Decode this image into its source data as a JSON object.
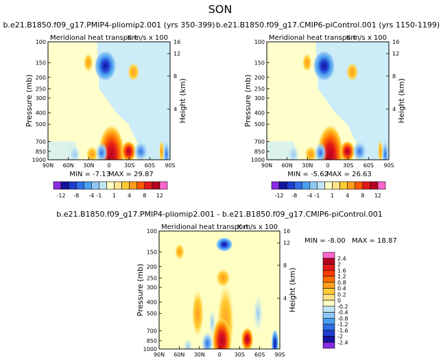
{
  "season": "SON",
  "colors": {
    "bg_light_yellow": "#ffffcc",
    "bg_light_blue": "#ccecf8",
    "palette_panels": [
      "#8a2be2",
      "#1414a0",
      "#1e3ccf",
      "#2f6fe6",
      "#4aa0f0",
      "#8fc7f4",
      "#bfe6f6",
      "#ffffc4",
      "#ffe48a",
      "#ffcc33",
      "#ff9a1a",
      "#ff5a00",
      "#e31a1c",
      "#b40020",
      "#ff66cc"
    ],
    "palette_diff": [
      "#8a2be2",
      "#1414a0",
      "#1e3ccf",
      "#2f6fe6",
      "#4aa0f0",
      "#8fc7f4",
      "#bfe6f6",
      "#ffffc4",
      "#ffe48a",
      "#ffcc33",
      "#ffa020",
      "#ff7000",
      "#ff3a00",
      "#e31a1c",
      "#b40020",
      "#ff66cc"
    ]
  },
  "panels": {
    "left": {
      "title": "b.e21.B1850.f09_g17.PMIP4-pliomip2.001 (yrs 350-399)",
      "subtitle_left": "Meridional heat transport",
      "subtitle_right": "K m/s x 100",
      "min_text": "MIN = -7.13",
      "max_text": "MAX = 29.87",
      "colorbar_labels": [
        "-12",
        "-8",
        "-4",
        "-1",
        "1",
        "4",
        "8",
        "12"
      ]
    },
    "right": {
      "title": "b.e21.B1850.f09_g17.CMIP6-piControl.001 (yrs 1150-1199)",
      "subtitle_left": "Meridional heat transport",
      "subtitle_right": "K m/s x 100",
      "min_text": "MIN = -5.62",
      "max_text": "MAX = 26.63",
      "colorbar_labels": [
        "-12",
        "-8",
        "-4",
        "-1",
        "1",
        "4",
        "8",
        "12"
      ]
    },
    "diff": {
      "title": "b.e21.B1850.f09_g17.PMIP4-pliomip2.001 - b.e21.B1850.f09_g17.CMIP6-piControl.001",
      "subtitle_left": "Meridional heat transport",
      "subtitle_right": "K m/s x 100",
      "min_text": "MIN = -8.00",
      "max_text": "MAX = 18.87",
      "colorbar_labels": [
        "2.4",
        "2",
        "1.6",
        "1.2",
        "0.8",
        "0.4",
        "0.2",
        "0",
        "-0.2",
        "-0.4",
        "-0.8",
        "-1.2",
        "-1.6",
        "-2",
        "-2.4"
      ]
    }
  },
  "axes": {
    "ylabel": "Pressure (mb)",
    "ylabel_right": "Height (km)",
    "pressure_ticks": [
      "100",
      "150",
      "200",
      "250",
      "300",
      "400",
      "500",
      "700",
      "850",
      "1000"
    ],
    "height_ticks": [
      "16",
      "12",
      "8",
      "4"
    ],
    "lat_ticks": [
      "90N",
      "60N",
      "30N",
      "0",
      "30S",
      "60S",
      "90S"
    ]
  },
  "chart_data": [
    {
      "type": "heatmap",
      "title": "b.e21.B1850.f09_g17.PMIP4-pliomip2.001 (yrs 350-399)",
      "ylabel": "Pressure (mb)",
      "x_ticks": [
        "90N",
        "60N",
        "30N",
        "0",
        "30S",
        "60S",
        "90S"
      ],
      "y_ticks": [
        100,
        150,
        200,
        250,
        300,
        400,
        500,
        700,
        850,
        1000
      ],
      "levels": [
        -12,
        -8,
        -4,
        -1,
        1,
        4,
        8,
        12
      ],
      "min": -7.13,
      "max": 29.87
    },
    {
      "type": "heatmap",
      "title": "b.e21.B1850.f09_g17.CMIP6-piControl.001 (yrs 1150-1199)",
      "ylabel": "Pressure (mb)",
      "x_ticks": [
        "90N",
        "60N",
        "30N",
        "0",
        "30S",
        "60S",
        "90S"
      ],
      "y_ticks": [
        100,
        150,
        200,
        250,
        300,
        400,
        500,
        700,
        850,
        1000
      ],
      "levels": [
        -12,
        -8,
        -4,
        -1,
        1,
        4,
        8,
        12
      ],
      "min": -5.62,
      "max": 26.63
    },
    {
      "type": "heatmap",
      "title": "b.e21.B1850.f09_g17.PMIP4-pliomip2.001 - b.e21.B1850.f09_g17.CMIP6-piControl.001",
      "ylabel": "Pressure (mb)",
      "x_ticks": [
        "90N",
        "60N",
        "30N",
        "0",
        "30S",
        "60S",
        "90S"
      ],
      "y_ticks": [
        100,
        150,
        200,
        250,
        300,
        400,
        500,
        700,
        850,
        1000
      ],
      "levels": [
        -2.4,
        -2,
        -1.6,
        -1.2,
        -0.8,
        -0.4,
        -0.2,
        0,
        0.2,
        0.4,
        0.8,
        1.2,
        1.6,
        2,
        2.4
      ],
      "min": -8.0,
      "max": 18.87
    }
  ]
}
